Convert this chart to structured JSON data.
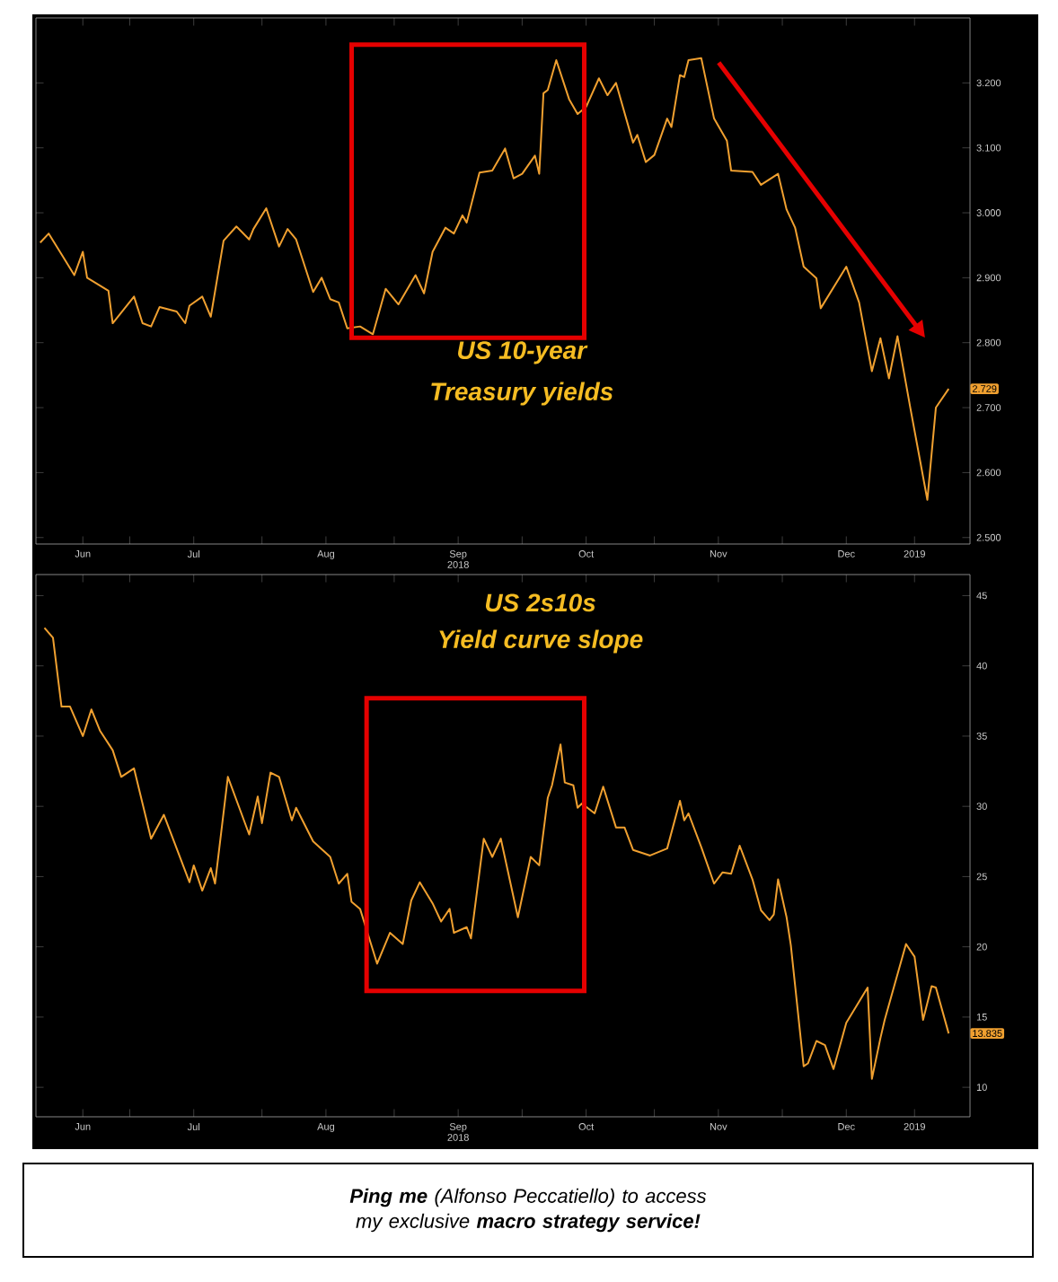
{
  "chart_data": [
    {
      "type": "line",
      "title": "US 10-year",
      "subtitle": "Treasury yields",
      "color": "#f0a030",
      "x": [
        "2018-06-10",
        "2018-06-12",
        "2018-06-15",
        "2018-06-18",
        "2018-06-20",
        "2018-06-21",
        "2018-06-26",
        "2018-06-27",
        "2018-07-02",
        "2018-07-04",
        "2018-07-06",
        "2018-07-08",
        "2018-07-12",
        "2018-07-14",
        "2018-07-15",
        "2018-07-18",
        "2018-07-20",
        "2018-07-23",
        "2018-07-26",
        "2018-07-29",
        "2018-07-30",
        "2018-08-02",
        "2018-08-05",
        "2018-08-07",
        "2018-08-09",
        "2018-08-13",
        "2018-08-15",
        "2018-08-17",
        "2018-08-19",
        "2018-08-21",
        "2018-08-24",
        "2018-08-27",
        "2018-08-30",
        "2018-09-02",
        "2018-09-06",
        "2018-09-08",
        "2018-09-10",
        "2018-09-13",
        "2018-09-15",
        "2018-09-17",
        "2018-09-18",
        "2018-09-21",
        "2018-09-24",
        "2018-09-27",
        "2018-09-29",
        "2018-10-01",
        "2018-10-04",
        "2018-10-05",
        "2018-10-06",
        "2018-10-07",
        "2018-10-09",
        "2018-10-12",
        "2018-10-14",
        "2018-10-16",
        "2018-10-19",
        "2018-10-21",
        "2018-10-23",
        "2018-10-27",
        "2018-10-28",
        "2018-10-30",
        "2018-11-01",
        "2018-11-04",
        "2018-11-05",
        "2018-11-07",
        "2018-11-08",
        "2018-11-09",
        "2018-11-12",
        "2018-11-15",
        "2018-11-18",
        "2018-11-19",
        "2018-11-24",
        "2018-11-26",
        "2018-11-30",
        "2018-12-02",
        "2018-12-04",
        "2018-12-06",
        "2018-12-09",
        "2018-12-10",
        "2018-12-16",
        "2018-12-19",
        "2018-12-22",
        "2018-12-24",
        "2018-12-26",
        "2018-12-28",
        "2018-12-31",
        "2019-01-04",
        "2019-01-06",
        "2019-01-09"
      ],
      "values": [
        2.954,
        2.968,
        2.936,
        2.904,
        2.94,
        2.9,
        2.88,
        2.83,
        2.871,
        2.83,
        2.825,
        2.855,
        2.848,
        2.83,
        2.857,
        2.871,
        2.84,
        2.957,
        2.979,
        2.959,
        2.975,
        3.007,
        2.948,
        2.975,
        2.959,
        2.878,
        2.9,
        2.867,
        2.862,
        2.822,
        2.825,
        2.813,
        2.883,
        2.859,
        2.904,
        2.876,
        2.94,
        2.977,
        2.968,
        2.996,
        2.985,
        3.062,
        3.065,
        3.099,
        3.053,
        3.06,
        3.088,
        3.06,
        3.184,
        3.189,
        3.235,
        3.175,
        3.152,
        3.163,
        3.207,
        3.181,
        3.2,
        3.108,
        3.12,
        3.078,
        3.089,
        3.145,
        3.132,
        3.212,
        3.209,
        3.235,
        3.238,
        3.145,
        3.111,
        3.065,
        3.063,
        3.043,
        3.06,
        3.005,
        2.977,
        2.917,
        2.899,
        2.853,
        2.917,
        2.862,
        2.756,
        2.807,
        2.745,
        2.81,
        2.7,
        2.558,
        2.7,
        2.729
      ],
      "xlim": [
        "2018-06-09",
        "2019-01-14"
      ],
      "xticks": [
        {
          "value": "2018-06-20",
          "label": "Jun"
        },
        {
          "value": "2018-07-01",
          "label": null
        },
        {
          "value": "2018-07-16",
          "label": "Jul"
        },
        {
          "value": "2018-08-01",
          "label": null
        },
        {
          "value": "2018-08-16",
          "label": "Aug"
        },
        {
          "value": "2018-09-01",
          "label": null
        },
        {
          "value": "2018-09-16",
          "label": "Sep 2018"
        },
        {
          "value": "2018-10-01",
          "label": null
        },
        {
          "value": "2018-10-16",
          "label": "Oct"
        },
        {
          "value": "2018-11-01",
          "label": null
        },
        {
          "value": "2018-11-16",
          "label": "Nov"
        },
        {
          "value": "2018-12-01",
          "label": null
        },
        {
          "value": "2018-12-16",
          "label": "Dec"
        },
        {
          "value": "2019-01-01",
          "label": "2019"
        }
      ],
      "ylim": [
        2.49,
        3.3
      ],
      "yticks": [
        {
          "value": 2.5,
          "label": "2.500"
        },
        {
          "value": 2.6,
          "label": "2.600"
        },
        {
          "value": 2.7,
          "label": "2.700"
        },
        {
          "value": 2.8,
          "label": "2.800"
        },
        {
          "value": 2.9,
          "label": "2.900"
        },
        {
          "value": 3.0,
          "label": "3.000"
        },
        {
          "value": 3.1,
          "label": "3.100"
        },
        {
          "value": 3.2,
          "label": "3.200"
        }
      ],
      "annotations": [
        {
          "text": "2.729",
          "y": 2.729
        }
      ]
    },
    {
      "type": "line",
      "title": "US 2s10s",
      "subtitle": "Yield curve slope",
      "color": "#f0a030",
      "x": [
        "2018-06-11",
        "2018-06-13",
        "2018-06-15",
        "2018-06-17",
        "2018-06-20",
        "2018-06-22",
        "2018-06-24",
        "2018-06-27",
        "2018-06-29",
        "2018-07-02",
        "2018-07-06",
        "2018-07-09",
        "2018-07-15",
        "2018-07-16",
        "2018-07-18",
        "2018-07-20",
        "2018-07-21",
        "2018-07-24",
        "2018-07-29",
        "2018-07-31",
        "2018-08-01",
        "2018-08-03",
        "2018-08-05",
        "2018-08-08",
        "2018-08-09",
        "2018-08-13",
        "2018-08-17",
        "2018-08-19",
        "2018-08-21",
        "2018-08-22",
        "2018-08-24",
        "2018-08-28",
        "2018-08-31",
        "2018-09-03",
        "2018-09-05",
        "2018-09-07",
        "2018-09-10",
        "2018-09-12",
        "2018-09-14",
        "2018-09-15",
        "2018-09-18",
        "2018-09-19",
        "2018-09-22",
        "2018-09-24",
        "2018-09-26",
        "2018-09-30",
        "2018-10-03",
        "2018-10-05",
        "2018-10-07",
        "2018-10-08",
        "2018-10-10",
        "2018-10-11",
        "2018-10-13",
        "2018-10-14",
        "2018-10-15",
        "2018-10-18",
        "2018-10-20",
        "2018-10-23",
        "2018-10-25",
        "2018-10-27",
        "2018-10-31",
        "2018-11-04",
        "2018-11-07",
        "2018-11-08",
        "2018-11-09",
        "2018-11-12",
        "2018-11-15",
        "2018-11-17",
        "2018-11-19",
        "2018-11-21",
        "2018-11-24",
        "2018-11-26",
        "2018-11-28",
        "2018-11-29",
        "2018-11-30",
        "2018-12-02",
        "2018-12-03",
        "2018-12-06",
        "2018-12-07",
        "2018-12-09",
        "2018-12-11",
        "2018-12-13",
        "2018-12-16",
        "2018-12-21",
        "2018-12-22",
        "2018-12-24",
        "2018-12-25",
        "2018-12-30",
        "2019-01-01",
        "2019-01-03",
        "2019-01-05",
        "2019-01-06",
        "2019-01-09"
      ],
      "values": [
        42.7,
        42.0,
        37.1,
        37.1,
        35.0,
        36.9,
        35.4,
        34.0,
        32.1,
        32.7,
        27.7,
        29.4,
        24.6,
        25.8,
        24.0,
        25.6,
        24.5,
        32.1,
        28.0,
        30.7,
        28.8,
        32.4,
        32.1,
        29.0,
        29.9,
        27.5,
        26.4,
        24.5,
        25.2,
        23.2,
        22.7,
        18.8,
        21.0,
        20.2,
        23.3,
        24.6,
        23.1,
        21.8,
        22.7,
        21.0,
        21.4,
        20.6,
        27.7,
        26.4,
        27.7,
        22.1,
        26.4,
        25.8,
        30.6,
        31.5,
        34.4,
        31.7,
        31.5,
        29.9,
        30.2,
        29.5,
        31.4,
        28.5,
        28.5,
        26.9,
        26.5,
        27.0,
        30.4,
        29.0,
        29.5,
        27.1,
        24.5,
        25.3,
        25.2,
        27.2,
        24.8,
        22.6,
        21.9,
        22.3,
        24.8,
        22.1,
        20.1,
        11.5,
        11.7,
        13.3,
        13.0,
        11.3,
        14.6,
        17.1,
        10.6,
        13.5,
        14.8,
        20.2,
        19.3,
        14.8,
        17.2,
        17.1,
        13.835
      ],
      "xlim": [
        "2018-06-09",
        "2019-01-14"
      ],
      "xticks": [
        {
          "value": "2018-06-20",
          "label": "Jun"
        },
        {
          "value": "2018-07-01",
          "label": null
        },
        {
          "value": "2018-07-16",
          "label": "Jul"
        },
        {
          "value": "2018-08-01",
          "label": null
        },
        {
          "value": "2018-08-16",
          "label": "Aug"
        },
        {
          "value": "2018-09-01",
          "label": null
        },
        {
          "value": "2018-09-16",
          "label": "Sep 2018"
        },
        {
          "value": "2018-10-01",
          "label": null
        },
        {
          "value": "2018-10-16",
          "label": "Oct"
        },
        {
          "value": "2018-11-01",
          "label": null
        },
        {
          "value": "2018-11-16",
          "label": "Nov"
        },
        {
          "value": "2018-12-01",
          "label": null
        },
        {
          "value": "2018-12-16",
          "label": "Dec"
        },
        {
          "value": "2019-01-01",
          "label": "2019"
        }
      ],
      "ylim": [
        7.9,
        46.5
      ],
      "yticks": [
        10,
        15,
        20,
        25,
        30,
        35,
        40,
        45
      ],
      "annotations": [
        {
          "text": "13.835",
          "y": 13.835
        },
        "**Ping me** (Alfonso Peccatiello) to access my exclusive **macro strategy service!**"
      ]
    }
  ]
}
